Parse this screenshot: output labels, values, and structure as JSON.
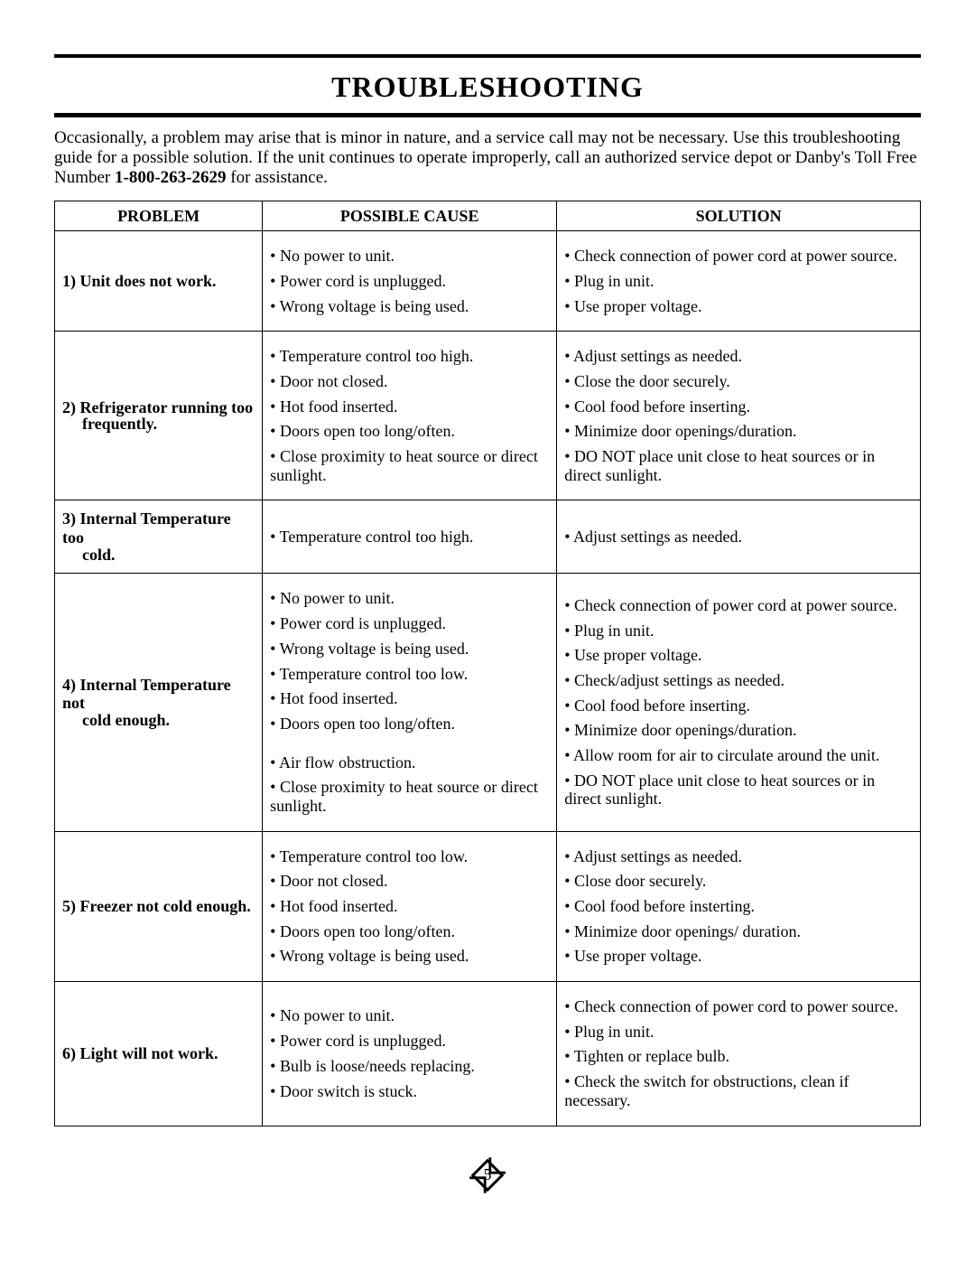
{
  "title": "TROUBLESHOOTING",
  "intro": {
    "pre": "Occasionally, a problem may arise that is minor in nature, and a service call may not be necessary. Use this troubleshooting guide for a possible solution. If the unit continues to operate improperly, call an authorized service depot or Danby's Toll Free Number ",
    "phone": "1-800-263-2629",
    "post": " for assistance."
  },
  "headers": {
    "problem": "PROBLEM",
    "cause": "POSSIBLE CAUSE",
    "solution": "SOLUTION"
  },
  "rows": [
    {
      "num": "1)",
      "problem": "Unit does not work.",
      "causes": [
        "No power to unit.",
        "Power cord is unplugged.",
        "Wrong voltage is being used."
      ],
      "solutions": [
        "Check connection of power cord at power source.",
        "Plug in unit.",
        "Use proper voltage."
      ]
    },
    {
      "num": "2)",
      "problem": "Refrigerator running too",
      "problem_line2": "frequently.",
      "causes": [
        "Temperature control too high.",
        "Door not closed.",
        "Hot food inserted.",
        "Doors open too long/often.",
        "Close proximity to heat source or direct sunlight."
      ],
      "solutions": [
        "Adjust settings as needed.",
        "Close the door securely.",
        "Cool food before inserting.",
        "Minimize door openings/duration.",
        "DO NOT place unit close to heat sources or in direct sunlight."
      ]
    },
    {
      "num": "3)",
      "problem": "Internal Temperature too",
      "problem_line2": "cold.",
      "causes": [
        "Temperature control too high."
      ],
      "solutions": [
        "Adjust settings as needed."
      ]
    },
    {
      "num": "4)",
      "problem": "Internal Temperature not",
      "problem_line2": "cold enough.",
      "causes": [
        "No power to unit.",
        "Power cord is unplugged.",
        "Wrong voltage is being used.",
        "Temperature control too low.",
        "Hot food inserted.",
        "Doors open too long/often.",
        "Air flow obstruction.",
        "Close proximity to heat source or direct sunlight."
      ],
      "cause_gap_before": [
        6
      ],
      "solutions": [
        "Check connection of power cord at power source.",
        "Plug in unit.",
        "Use proper voltage.",
        "Check/adjust settings as needed.",
        "Cool food before inserting.",
        "Minimize door openings/duration.",
        "Allow room for air to circulate around the unit.",
        "DO NOT place unit close to heat sources or in direct sunlight."
      ]
    },
    {
      "num": "5)",
      "problem": "Freezer not cold enough.",
      "causes": [
        "Temperature control too low.",
        "Door not closed.",
        "Hot food inserted.",
        "Doors open too long/often.",
        "Wrong voltage is being used."
      ],
      "solutions": [
        "Adjust settings as needed.",
        "Close door securely.",
        "Cool food before insterting.",
        "Minimize door openings/ duration.",
        "Use proper voltage."
      ]
    },
    {
      "num": "6)",
      "problem": "Light will not work.",
      "causes": [
        "No power to unit.",
        "Power cord is unplugged.",
        "Bulb is loose/needs replacing.",
        "Door switch is stuck."
      ],
      "solutions": [
        "Check connection of power cord to power source.",
        "Plug in unit.",
        "Tighten or replace bulb.",
        "Check the switch for obstructions, clean if necessary."
      ]
    }
  ],
  "page_number": "5"
}
